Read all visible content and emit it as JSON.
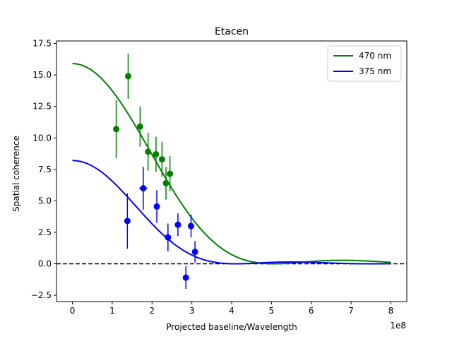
{
  "chart_data": {
    "type": "scatter",
    "title": "Etacen",
    "xlabel": "Projected baseline/Wavelength",
    "ylabel": "Spatial coherence",
    "x_offset_label": "1e8",
    "xlim": [
      -0.4,
      8.4
    ],
    "ylim": [
      -3.0,
      17.7
    ],
    "x_ticks": [
      0,
      1,
      2,
      3,
      4,
      5,
      6,
      7,
      8
    ],
    "y_ticks": [
      -2.5,
      0.0,
      2.5,
      5.0,
      7.5,
      10.0,
      12.5,
      15.0,
      17.5
    ],
    "x_tick_labels": [
      "0",
      "1",
      "2",
      "3",
      "4",
      "5",
      "6",
      "7",
      "8"
    ],
    "y_tick_labels": [
      "−2.5",
      "0.0",
      "2.5",
      "5.0",
      "7.5",
      "10.0",
      "12.5",
      "15.0",
      "17.5"
    ],
    "legend_position": "top-right",
    "reference_line": {
      "y": 0,
      "style": "dashed",
      "color": "#000000"
    },
    "series": [
      {
        "name": "470 nm",
        "color": "#008000",
        "fit_curve": {
          "amplitude": 15.9,
          "first_zero": 5.05,
          "x_max": 8.0
        },
        "points": [
          {
            "x": 1.1,
            "y": 10.7,
            "yerr": 2.3,
            "xerr": 0.0
          },
          {
            "x": 1.4,
            "y": 14.9,
            "yerr": 1.8,
            "xerr": 0.0
          },
          {
            "x": 1.7,
            "y": 10.9,
            "yerr": 1.6,
            "xerr": 0.0
          },
          {
            "x": 1.9,
            "y": 8.9,
            "yerr": 1.5,
            "xerr": 0.0
          },
          {
            "x": 2.1,
            "y": 8.7,
            "yerr": 1.4,
            "xerr": 0.0
          },
          {
            "x": 2.25,
            "y": 8.3,
            "yerr": 1.4,
            "xerr": 0.0
          },
          {
            "x": 2.35,
            "y": 6.4,
            "yerr": 1.3,
            "xerr": 0.0
          },
          {
            "x": 2.45,
            "y": 7.15,
            "yerr": 1.4,
            "xerr": 0.0
          }
        ]
      },
      {
        "name": "375 nm",
        "color": "#0000ff",
        "fit_curve": {
          "amplitude": 8.2,
          "first_zero": 4.1,
          "x_max": 8.0
        },
        "points": [
          {
            "x": 1.38,
            "y": 3.4,
            "yerr": 2.2,
            "xerr": 0.08
          },
          {
            "x": 1.78,
            "y": 6.0,
            "yerr": 1.7,
            "xerr": 0.1
          },
          {
            "x": 2.12,
            "y": 4.55,
            "yerr": 1.3,
            "xerr": 0.05
          },
          {
            "x": 2.4,
            "y": 2.1,
            "yerr": 1.1,
            "xerr": 0.0
          },
          {
            "x": 2.65,
            "y": 3.1,
            "yerr": 0.9,
            "xerr": 0.0
          },
          {
            "x": 2.85,
            "y": -1.1,
            "yerr": 0.9,
            "xerr": 0.0
          },
          {
            "x": 2.98,
            "y": 3.0,
            "yerr": 0.9,
            "xerr": 0.0
          },
          {
            "x": 3.08,
            "y": 0.95,
            "yerr": 0.85,
            "xerr": 0.0
          }
        ]
      }
    ]
  }
}
